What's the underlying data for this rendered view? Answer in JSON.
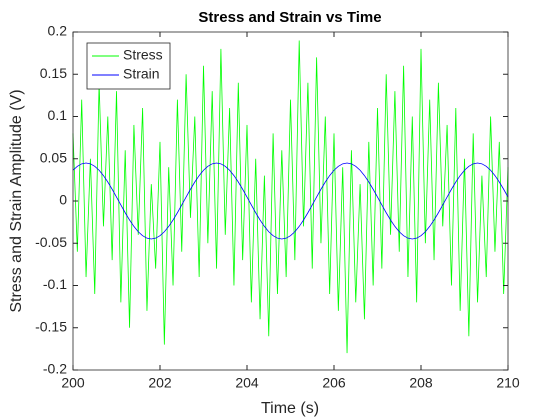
{
  "chart_data": {
    "type": "line",
    "title": "Stress and Strain vs Time",
    "xlabel": "Time (s)",
    "ylabel": "Stress and Strain Amplitude (V)",
    "legend": "northwest",
    "xlim": [
      200,
      210
    ],
    "xticks": [
      200,
      202,
      204,
      206,
      208,
      210
    ],
    "ylim": [
      -0.2,
      0.2
    ],
    "yticks": [
      -0.2,
      -0.15,
      -0.1,
      -0.05,
      0,
      0.05,
      0.1,
      0.15,
      0.2
    ],
    "x": [
      200,
      200.1,
      200.2,
      200.3,
      200.4,
      200.5,
      200.6,
      200.7,
      200.8,
      200.9,
      201,
      201.1,
      201.2,
      201.3,
      201.4,
      201.5,
      201.6,
      201.7,
      201.8,
      201.9,
      202,
      202.1,
      202.2,
      202.3,
      202.4,
      202.5,
      202.6,
      202.7,
      202.8,
      202.9,
      203,
      203.1,
      203.2,
      203.3,
      203.4,
      203.5,
      203.6,
      203.7,
      203.8,
      203.9,
      204,
      204.1,
      204.2,
      204.3,
      204.4,
      204.5,
      204.6,
      204.7,
      204.8,
      204.9,
      205,
      205.1,
      205.2,
      205.3,
      205.4,
      205.5,
      205.6,
      205.7,
      205.8,
      205.9,
      206,
      206.1,
      206.2,
      206.3,
      206.4,
      206.5,
      206.6,
      206.7,
      206.8,
      206.9,
      207,
      207.1,
      207.2,
      207.3,
      207.4,
      207.5,
      207.6,
      207.7,
      207.8,
      207.9,
      208,
      208.1,
      208.2,
      208.3,
      208.4,
      208.5,
      208.6,
      208.7,
      208.8,
      208.9,
      209,
      209.1,
      209.2,
      209.3,
      209.4,
      209.5,
      209.6,
      209.7,
      209.8,
      209.9,
      210
    ],
    "series": [
      {
        "name": "Stress",
        "color": "#00ff00",
        "values": [
          0.08,
          -0.06,
          0.12,
          -0.09,
          0.05,
          -0.11,
          0.14,
          -0.03,
          0.1,
          -0.07,
          0.13,
          -0.12,
          0.06,
          -0.15,
          0.09,
          -0.04,
          0.11,
          -0.13,
          0.02,
          -0.08,
          0.07,
          -0.17,
          0.04,
          -0.1,
          0.12,
          -0.06,
          0.15,
          -0.02,
          0.1,
          -0.09,
          0.16,
          -0.05,
          0.13,
          -0.08,
          0.18,
          -0.04,
          0.11,
          -0.1,
          0.14,
          -0.07,
          0.09,
          -0.12,
          0.05,
          -0.14,
          0.03,
          -0.16,
          0.08,
          -0.11,
          0.06,
          -0.09,
          0.12,
          -0.07,
          0.19,
          -0.03,
          0.14,
          -0.08,
          0.17,
          -0.05,
          0.1,
          -0.11,
          0.08,
          -0.13,
          0.04,
          -0.18,
          0.06,
          -0.12,
          0.02,
          -0.14,
          0.07,
          -0.1,
          0.11,
          -0.08,
          0.15,
          -0.04,
          0.13,
          -0.06,
          0.16,
          -0.09,
          0.1,
          -0.12,
          0.18,
          -0.05,
          0.12,
          -0.07,
          0.14,
          -0.03,
          0.09,
          -0.1,
          0.11,
          -0.13,
          0.05,
          -0.16,
          0.08,
          -0.12,
          0.03,
          -0.09,
          0.1,
          -0.06,
          0.07,
          -0.11,
          0.04
        ]
      },
      {
        "name": "Strain",
        "color": "#0000ff",
        "values": [
          0.0364,
          0.0411,
          0.044,
          0.045,
          0.044,
          0.0411,
          0.0364,
          0.0301,
          0.0225,
          0.0139,
          0.0047,
          -0.0047,
          -0.0139,
          -0.0225,
          -0.0301,
          -0.0364,
          -0.0411,
          -0.044,
          -0.045,
          -0.044,
          -0.0411,
          -0.0364,
          -0.0301,
          -0.0225,
          -0.0139,
          -0.0047,
          0.0047,
          0.0139,
          0.0225,
          0.0301,
          0.0364,
          0.0411,
          0.044,
          0.045,
          0.044,
          0.0411,
          0.0364,
          0.0301,
          0.0225,
          0.0139,
          0.0047,
          -0.0047,
          -0.0139,
          -0.0225,
          -0.0301,
          -0.0364,
          -0.0411,
          -0.044,
          -0.045,
          -0.044,
          -0.0411,
          -0.0364,
          -0.0301,
          -0.0225,
          -0.0139,
          -0.0047,
          0.0047,
          0.0139,
          0.0225,
          0.0301,
          0.0364,
          0.0411,
          0.044,
          0.045,
          0.044,
          0.0411,
          0.0364,
          0.0301,
          0.0225,
          0.0139,
          0.0047,
          -0.0047,
          -0.0139,
          -0.0225,
          -0.0301,
          -0.0364,
          -0.0411,
          -0.044,
          -0.045,
          -0.044,
          -0.0411,
          -0.0364,
          -0.0301,
          -0.0225,
          -0.0139,
          -0.0047,
          0.0047,
          0.0139,
          0.0225,
          0.0301,
          0.0364,
          0.0411,
          0.044,
          0.045,
          0.044,
          0.0411,
          0.0364,
          0.0301,
          0.0225,
          0.0139,
          0.0047
        ]
      }
    ]
  }
}
